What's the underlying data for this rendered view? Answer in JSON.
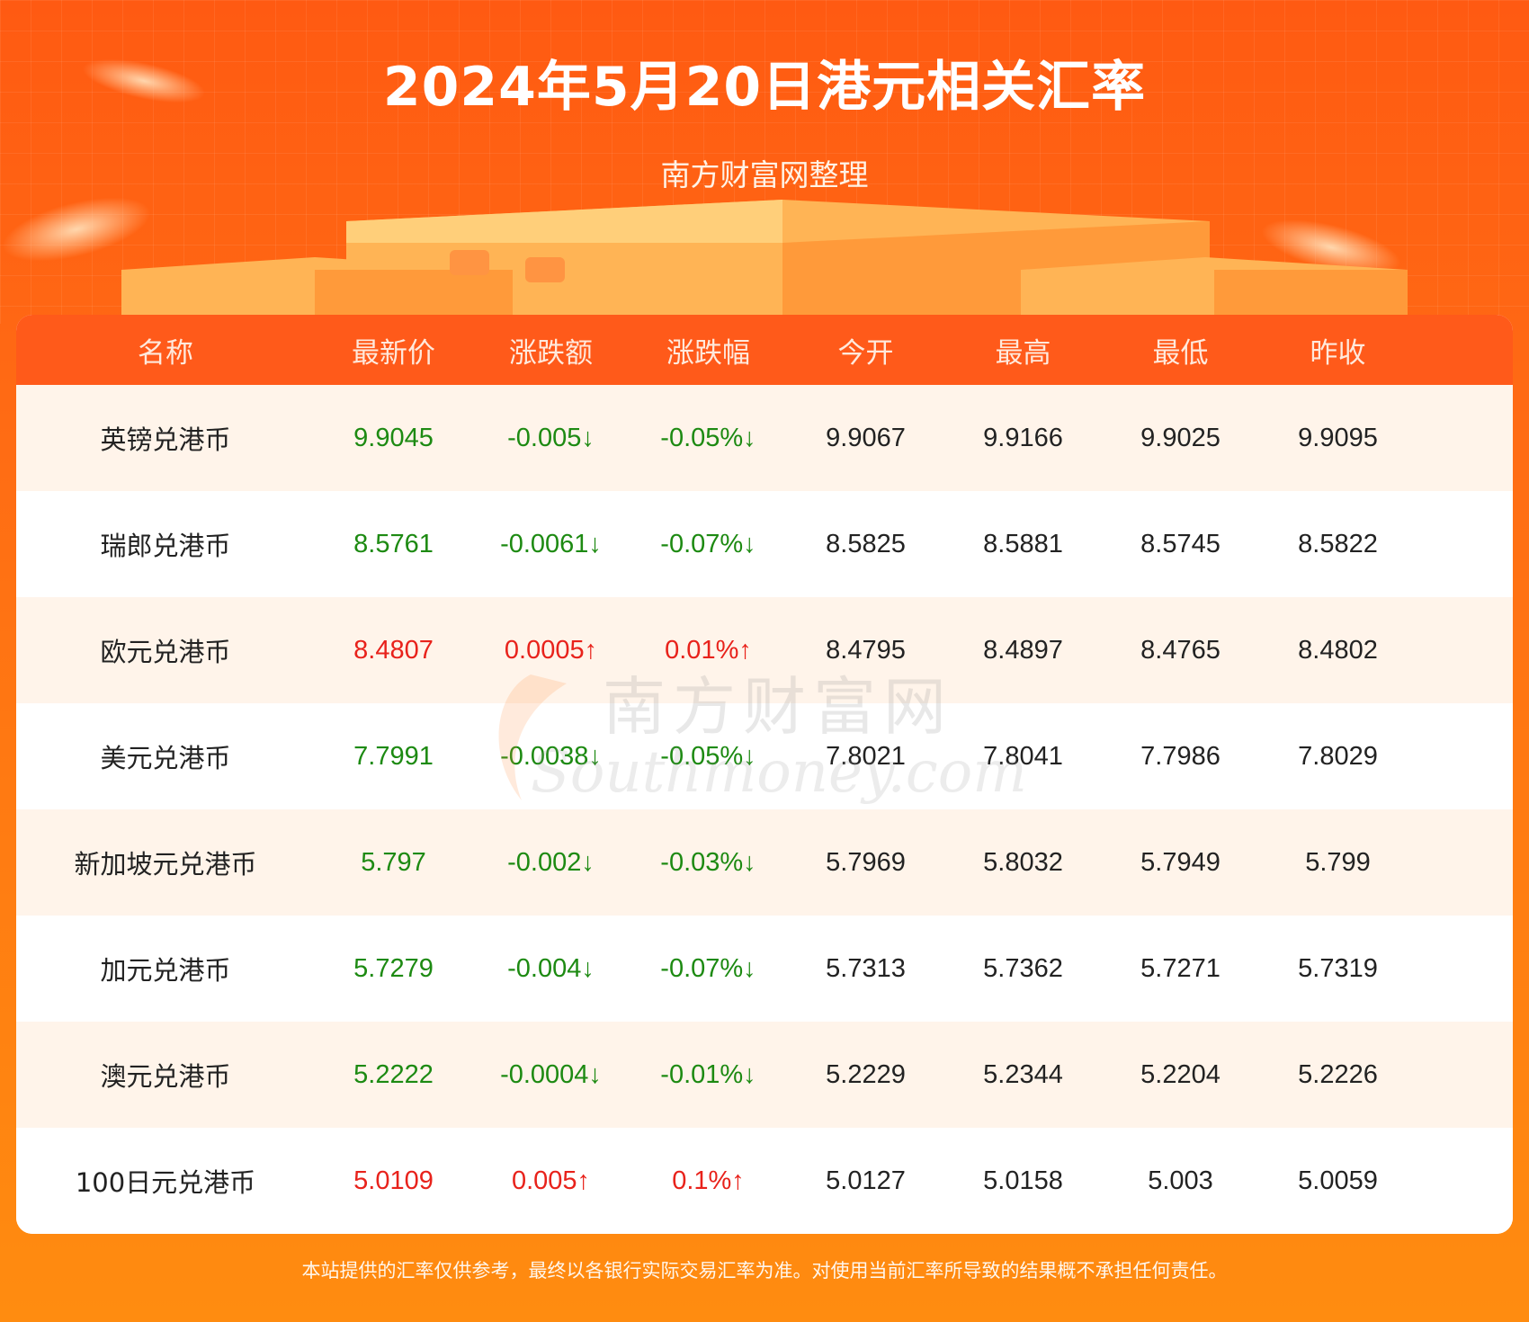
{
  "header": {
    "title": "2024年5月20日港元相关汇率",
    "subtitle": "南方财富网整理"
  },
  "table": {
    "columns": [
      "名称",
      "最新价",
      "涨跌额",
      "涨跌幅",
      "今开",
      "最高",
      "最低",
      "昨收"
    ],
    "rows": [
      {
        "name": "英镑兑港币",
        "latest": "9.9045",
        "change": "-0.005↓",
        "pct": "-0.05%↓",
        "open": "9.9067",
        "high": "9.9166",
        "low": "9.9025",
        "prev": "9.9095",
        "trend": "down"
      },
      {
        "name": "瑞郎兑港币",
        "latest": "8.5761",
        "change": "-0.0061↓",
        "pct": "-0.07%↓",
        "open": "8.5825",
        "high": "8.5881",
        "low": "8.5745",
        "prev": "8.5822",
        "trend": "down"
      },
      {
        "name": "欧元兑港币",
        "latest": "8.4807",
        "change": "0.0005↑",
        "pct": "0.01%↑",
        "open": "8.4795",
        "high": "8.4897",
        "low": "8.4765",
        "prev": "8.4802",
        "trend": "up"
      },
      {
        "name": "美元兑港币",
        "latest": "7.7991",
        "change": "-0.0038↓",
        "pct": "-0.05%↓",
        "open": "7.8021",
        "high": "7.8041",
        "low": "7.7986",
        "prev": "7.8029",
        "trend": "down"
      },
      {
        "name": "新加坡元兑港币",
        "latest": "5.797",
        "change": "-0.002↓",
        "pct": "-0.03%↓",
        "open": "5.7969",
        "high": "5.8032",
        "low": "5.7949",
        "prev": "5.799",
        "trend": "down"
      },
      {
        "name": "加元兑港币",
        "latest": "5.7279",
        "change": "-0.004↓",
        "pct": "-0.07%↓",
        "open": "5.7313",
        "high": "5.7362",
        "low": "5.7271",
        "prev": "5.7319",
        "trend": "down"
      },
      {
        "name": "澳元兑港币",
        "latest": "5.2222",
        "change": "-0.0004↓",
        "pct": "-0.01%↓",
        "open": "5.2229",
        "high": "5.2344",
        "low": "5.2204",
        "prev": "5.2226",
        "trend": "down"
      },
      {
        "name": "100日元兑港币",
        "latest": "5.0109",
        "change": "0.005↑",
        "pct": "0.1%↑",
        "open": "5.0127",
        "high": "5.0158",
        "low": "5.003",
        "prev": "5.0059",
        "trend": "up"
      }
    ]
  },
  "watermark": {
    "cn": "南方财富网",
    "en": "Southmoney.com"
  },
  "footer": "本站提供的汇率仅供参考，最终以各银行实际交易汇率为准。对使用当前汇率所导致的结果概不承担任何责任。",
  "colors": {
    "up": "#e8221b",
    "down": "#1d8a12",
    "header": "#ff5a1a",
    "accent": "#ff6a14"
  }
}
